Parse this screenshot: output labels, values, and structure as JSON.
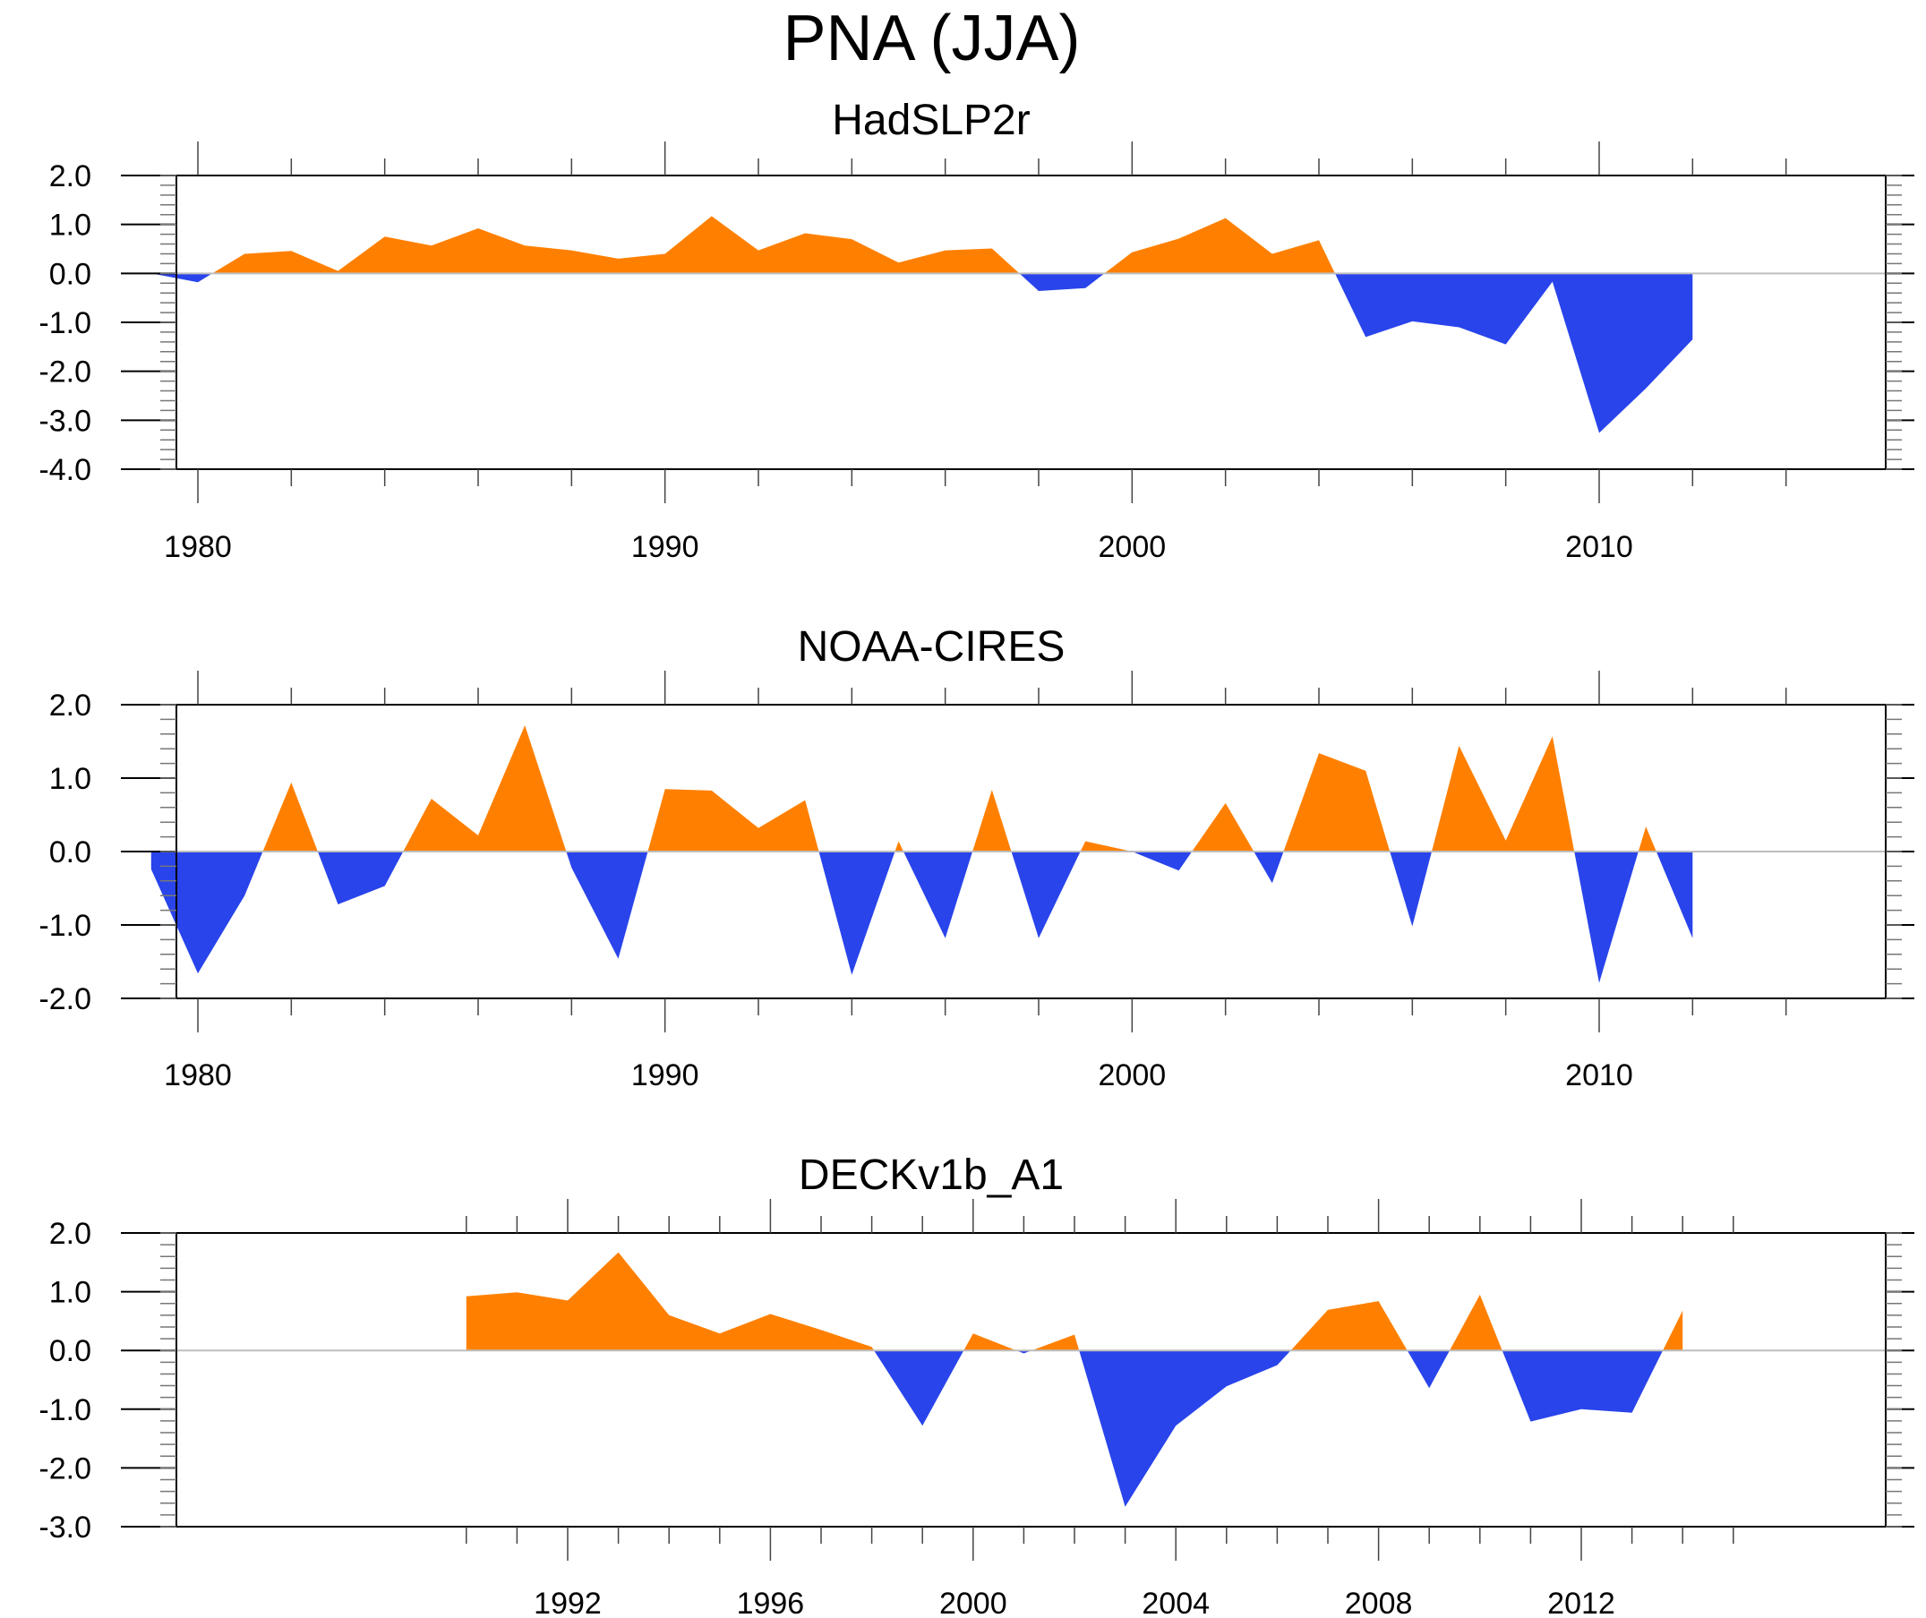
{
  "figure_title": "PNA (JJA)",
  "colors": {
    "positive": "#ff8000",
    "negative": "#2944eb",
    "axis": "#000000",
    "zero_line": "#bdbdbd"
  },
  "chart_data": [
    {
      "type": "area",
      "title": "HadSLP2r",
      "xlabel": "",
      "ylabel": "",
      "xlim": [
        1977.0,
        2014.0
      ],
      "ylim": [
        -4.0,
        2.0
      ],
      "xticks_major": [
        1980,
        1990,
        2000,
        2010
      ],
      "xticks_minor_step": 2,
      "yticks": [
        -4.0,
        -3.0,
        -2.0,
        -1.0,
        0.0,
        1.0,
        2.0
      ],
      "ytick_labels": [
        "-4.0",
        "-3.0",
        "-2.0",
        "-1.0",
        "0.0",
        "1.0",
        "2.0"
      ],
      "x": [
        1979,
        1980,
        1981,
        1982,
        1983,
        1984,
        1985,
        1986,
        1987,
        1988,
        1989,
        1990,
        1991,
        1992,
        1993,
        1994,
        1995,
        1996,
        1997,
        1998,
        1999,
        2000,
        2001,
        2002,
        2003,
        2004,
        2005,
        2006,
        2007,
        2008,
        2009,
        2010,
        2011,
        2012
      ],
      "values": [
        0.0,
        -0.18,
        0.4,
        0.46,
        0.05,
        0.75,
        0.57,
        0.92,
        0.57,
        0.47,
        0.3,
        0.4,
        1.17,
        0.47,
        0.82,
        0.7,
        0.22,
        0.47,
        0.51,
        -0.36,
        -0.3,
        0.43,
        0.71,
        1.13,
        0.4,
        0.68,
        -1.3,
        -0.98,
        -1.1,
        -1.45,
        -0.17,
        -3.26,
        -2.35,
        -1.35
      ],
      "fill_above_zero": "positive",
      "fill_below_zero": "negative",
      "grid": false
    },
    {
      "type": "area",
      "title": "NOAA-CIRES",
      "xlabel": "",
      "ylabel": "",
      "xlim": [
        1977.0,
        2014.0
      ],
      "ylim": [
        -2.0,
        2.0
      ],
      "xticks_major": [
        1980,
        1990,
        2000,
        2010
      ],
      "xticks_minor_step": 2,
      "yticks": [
        -2.0,
        -1.0,
        0.0,
        1.0,
        2.0
      ],
      "ytick_labels": [
        "-2.0",
        "-1.0",
        "0.0",
        "1.0",
        "2.0"
      ],
      "x": [
        1979,
        1980,
        1981,
        1982,
        1983,
        1984,
        1985,
        1986,
        1987,
        1988,
        1989,
        1990,
        1991,
        1992,
        1993,
        1994,
        1995,
        1996,
        1997,
        1998,
        1999,
        2000,
        2001,
        2002,
        2003,
        2004,
        2005,
        2006,
        2007,
        2008,
        2009,
        2010,
        2011,
        2012
      ],
      "values": [
        -0.24,
        -1.66,
        -0.6,
        0.94,
        -0.72,
        -0.47,
        0.72,
        0.22,
        1.72,
        -0.22,
        -1.46,
        0.85,
        0.83,
        0.32,
        0.7,
        -1.68,
        0.14,
        -1.18,
        0.84,
        -1.18,
        0.14,
        0.0,
        -0.26,
        0.66,
        -0.43,
        1.34,
        1.1,
        -1.02,
        1.44,
        0.15,
        1.57,
        -1.79,
        0.34,
        -1.18
      ],
      "fill_above_zero": "positive",
      "fill_below_zero": "negative",
      "grid": false
    },
    {
      "type": "area",
      "title": "DECKv1b_A1",
      "xlabel": "",
      "ylabel": "",
      "xlim": [
        1989.5,
        2015.5
      ],
      "ylim": [
        -3.0,
        2.0
      ],
      "xticks_major": [
        1992,
        1996,
        2000,
        2004,
        2008,
        2012
      ],
      "xticks_minor_step": 1,
      "yticks": [
        -3.0,
        -2.0,
        -1.0,
        0.0,
        1.0,
        2.0
      ],
      "ytick_labels": [
        "-3.0",
        "-2.0",
        "-1.0",
        "0.0",
        "1.0",
        "2.0"
      ],
      "x": [
        1990,
        1991,
        1992,
        1993,
        1994,
        1995,
        1996,
        1997,
        1998,
        1999,
        2000,
        2001,
        2002,
        2003,
        2004,
        2005,
        2006,
        2007,
        2008,
        2009,
        2010,
        2011,
        2012,
        2013,
        2014
      ],
      "values": [
        0.92,
        0.99,
        0.85,
        1.67,
        0.6,
        0.29,
        0.62,
        0.35,
        0.06,
        -1.28,
        0.29,
        -0.05,
        0.27,
        -2.66,
        -1.28,
        -0.61,
        -0.25,
        0.69,
        0.84,
        -0.64,
        0.95,
        -1.21,
        -1.0,
        -1.06,
        0.68
      ],
      "fill_above_zero": "positive",
      "fill_below_zero": "negative",
      "grid": false
    }
  ]
}
